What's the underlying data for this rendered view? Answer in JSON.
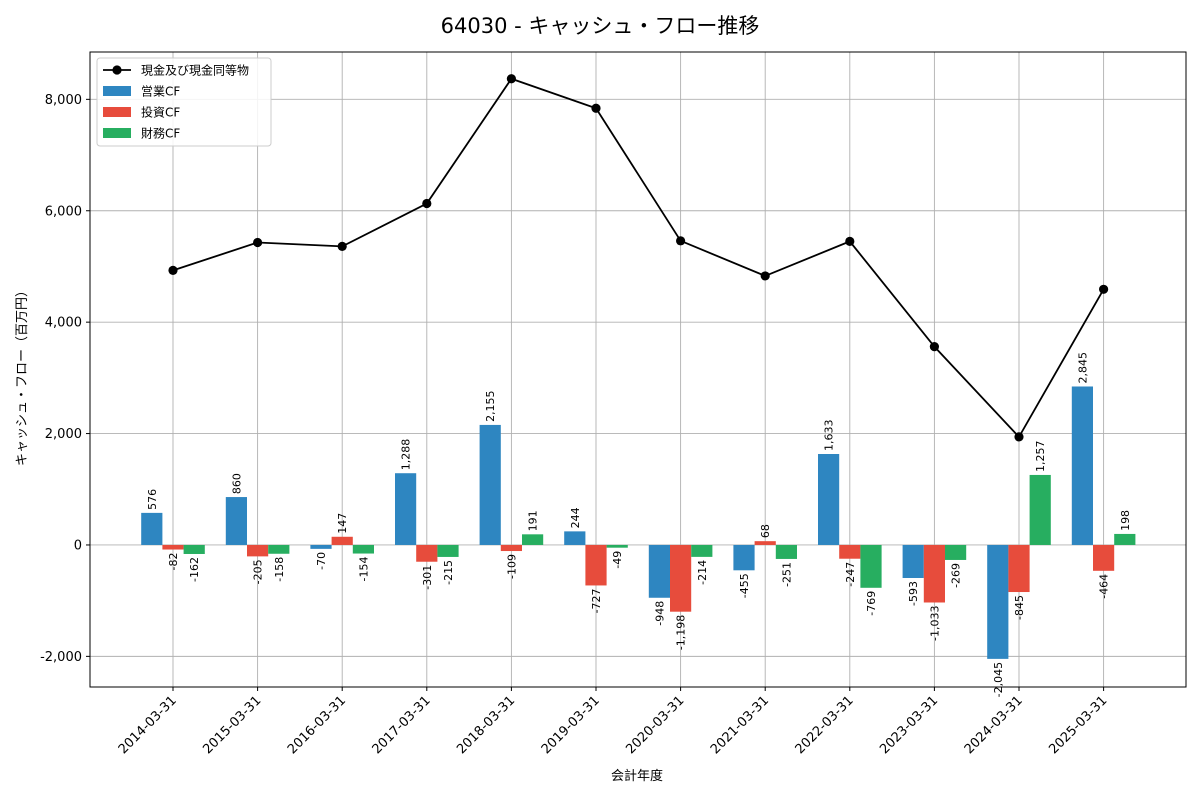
{
  "chart_data": {
    "type": "bar",
    "title": "64030 - キャッシュ・フロー推移",
    "xlabel": "会計年度",
    "ylabel": "キャッシュ・フロー（百万円）",
    "ylim": [
      -2550,
      8850
    ],
    "yticks": [
      -2000,
      0,
      2000,
      4000,
      6000,
      8000
    ],
    "ytick_labels": [
      "-2,000",
      "0",
      "2,000",
      "4,000",
      "6,000",
      "8,000"
    ],
    "grid": true,
    "legend_position": "top-left",
    "categories": [
      "2014-03-31",
      "2015-03-31",
      "2016-03-31",
      "2017-03-31",
      "2018-03-31",
      "2019-03-31",
      "2020-03-31",
      "2021-03-31",
      "2022-03-31",
      "2023-03-31",
      "2024-03-31",
      "2025-03-31"
    ],
    "series": [
      {
        "name": "営業CF",
        "kind": "bar",
        "color": "#2e86c1",
        "values": [
          576,
          860,
          -70,
          1288,
          2155,
          244,
          -948,
          -455,
          1633,
          -593,
          -2045,
          2845
        ],
        "labels": [
          "576",
          "860",
          "-70",
          "1,288",
          "2,155",
          "244",
          "-948",
          "-455",
          "1,633",
          "-593",
          "-2,045",
          "2,845"
        ]
      },
      {
        "name": "投資CF",
        "kind": "bar",
        "color": "#e74c3c",
        "values": [
          -82,
          -205,
          147,
          -301,
          -109,
          -727,
          -1198,
          68,
          -247,
          -1033,
          -845,
          -464
        ],
        "labels": [
          "-82",
          "-205",
          "147",
          "-301",
          "-109",
          "-727",
          "-1,198",
          "68",
          "-247",
          "-1,033",
          "-845",
          "-464"
        ]
      },
      {
        "name": "財務CF",
        "kind": "bar",
        "color": "#27ae60",
        "values": [
          -162,
          -158,
          -154,
          -215,
          191,
          -49,
          -214,
          -251,
          -769,
          -269,
          1257,
          198
        ],
        "labels": [
          "-162",
          "-158",
          "-154",
          "-215",
          "191",
          "-49",
          "-214",
          "-251",
          "-769",
          "-269",
          "1,257",
          "198"
        ]
      },
      {
        "name": "現金及び現金同等物",
        "kind": "line",
        "color": "#000000",
        "values": [
          4930,
          5430,
          5360,
          6130,
          8370,
          7840,
          5460,
          4830,
          5450,
          3560,
          1940,
          4590
        ]
      }
    ]
  }
}
